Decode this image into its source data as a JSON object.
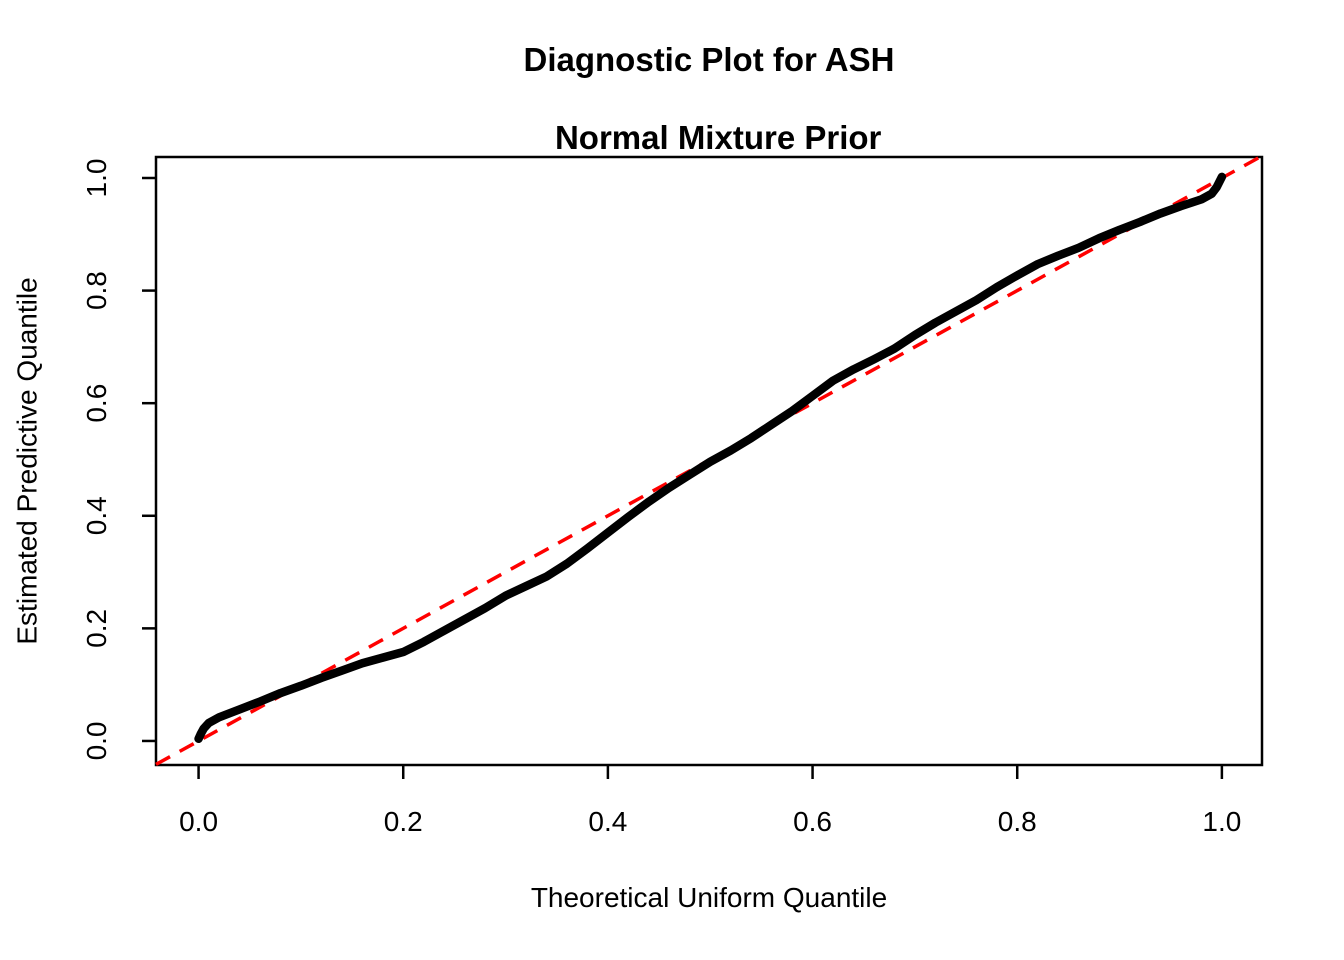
{
  "figure": {
    "title_line1": "Diagnostic Plot for ASH",
    "title_line2": "Normal Mixture Prior",
    "xlabel": "Theoretical Uniform Quantile",
    "ylabel": "Estimated Predictive Quantile"
  },
  "chart_data": {
    "type": "line",
    "title": "Diagnostic Plot for ASH — Normal Mixture Prior",
    "xlabel": "Theoretical Uniform Quantile",
    "ylabel": "Estimated Predictive Quantile",
    "xlim": [
      -0.0416,
      1.0392
    ],
    "ylim": [
      -0.0427,
      1.0373
    ],
    "x_ticks": [
      0.0,
      0.2,
      0.4,
      0.6,
      0.8,
      1.0
    ],
    "y_ticks": [
      0.0,
      0.2,
      0.4,
      0.6,
      0.8,
      1.0
    ],
    "grid": false,
    "legend": "none",
    "colors": {
      "curve": "#000000",
      "reference_line": "#FF0000",
      "axis": "#000000",
      "background": "#FFFFFF"
    },
    "series": [
      {
        "name": "estimated-predictive-quantile-curve",
        "color": "#000000",
        "style": "solid",
        "stroke_width": 8.5,
        "points": [
          [
            0.0,
            0.004
          ],
          [
            0.002,
            0.012
          ],
          [
            0.005,
            0.022
          ],
          [
            0.01,
            0.032
          ],
          [
            0.02,
            0.042
          ],
          [
            0.04,
            0.056
          ],
          [
            0.06,
            0.07
          ],
          [
            0.08,
            0.085
          ],
          [
            0.1,
            0.098
          ],
          [
            0.12,
            0.112
          ],
          [
            0.14,
            0.125
          ],
          [
            0.16,
            0.138
          ],
          [
            0.18,
            0.148
          ],
          [
            0.2,
            0.158
          ],
          [
            0.22,
            0.176
          ],
          [
            0.24,
            0.196
          ],
          [
            0.26,
            0.216
          ],
          [
            0.28,
            0.236
          ],
          [
            0.3,
            0.258
          ],
          [
            0.32,
            0.275
          ],
          [
            0.34,
            0.292
          ],
          [
            0.36,
            0.315
          ],
          [
            0.38,
            0.342
          ],
          [
            0.4,
            0.37
          ],
          [
            0.42,
            0.398
          ],
          [
            0.44,
            0.425
          ],
          [
            0.46,
            0.45
          ],
          [
            0.48,
            0.473
          ],
          [
            0.5,
            0.496
          ],
          [
            0.52,
            0.516
          ],
          [
            0.54,
            0.538
          ],
          [
            0.56,
            0.562
          ],
          [
            0.58,
            0.586
          ],
          [
            0.6,
            0.613
          ],
          [
            0.62,
            0.64
          ],
          [
            0.64,
            0.66
          ],
          [
            0.66,
            0.678
          ],
          [
            0.68,
            0.697
          ],
          [
            0.7,
            0.721
          ],
          [
            0.72,
            0.743
          ],
          [
            0.74,
            0.763
          ],
          [
            0.76,
            0.783
          ],
          [
            0.78,
            0.806
          ],
          [
            0.8,
            0.827
          ],
          [
            0.82,
            0.847
          ],
          [
            0.84,
            0.862
          ],
          [
            0.86,
            0.876
          ],
          [
            0.88,
            0.893
          ],
          [
            0.9,
            0.908
          ],
          [
            0.92,
            0.922
          ],
          [
            0.94,
            0.937
          ],
          [
            0.96,
            0.95
          ],
          [
            0.98,
            0.962
          ],
          [
            0.99,
            0.972
          ],
          [
            0.995,
            0.984
          ],
          [
            1.0,
            1.002
          ]
        ]
      },
      {
        "name": "identity-reference-line",
        "color": "#FF0000",
        "style": "dashed",
        "stroke_width": 3.5,
        "points": [
          [
            -0.0416,
            -0.0416
          ],
          [
            1.0373,
            1.0373
          ]
        ]
      }
    ]
  }
}
